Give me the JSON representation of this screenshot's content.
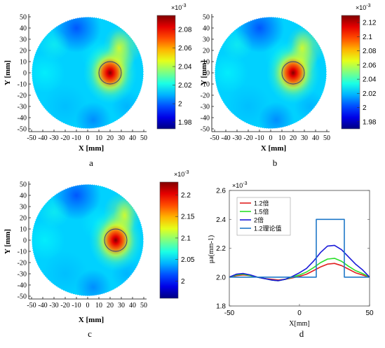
{
  "chart_data": [
    {
      "panel": "a",
      "type": "heatmap",
      "xlabel": "X [mm]",
      "ylabel": "Y [mm]",
      "x_ticks": [
        "-50",
        "-40",
        "-30",
        "-20",
        "-10",
        "0",
        "10",
        "20",
        "30",
        "40",
        "50"
      ],
      "y_ticks": [
        "50",
        "40",
        "30",
        "20",
        "10",
        "0",
        "-10",
        "-20",
        "-30",
        "-40",
        "-50"
      ],
      "xlim": [
        -55,
        55
      ],
      "ylim": [
        -55,
        55
      ],
      "domain": "circle of radius 50 mm",
      "inclusion": {
        "cx": 20,
        "cy": 0,
        "r": 10
      },
      "colorbar": {
        "exponent": "×10-3",
        "ticks": [
          "2.08",
          "2.06",
          "2.04",
          "2.02",
          "2",
          "1.98"
        ],
        "values": [
          2.08,
          2.06,
          2.04,
          2.02,
          2.0,
          1.98
        ],
        "range": [
          1.973,
          2.095
        ]
      }
    },
    {
      "panel": "b",
      "type": "heatmap",
      "xlabel": "X [mm]",
      "ylabel": "Y [mm]",
      "x_ticks": [
        "-50",
        "-40",
        "-30",
        "-20",
        "-10",
        "0",
        "10",
        "20",
        "30",
        "40",
        "50"
      ],
      "y_ticks": [
        "50",
        "40",
        "30",
        "20",
        "10",
        "0",
        "-10",
        "-20",
        "-30",
        "-40",
        "-50"
      ],
      "xlim": [
        -55,
        55
      ],
      "ylim": [
        -55,
        55
      ],
      "domain": "circle of radius 50 mm",
      "inclusion": {
        "cx": 20,
        "cy": 0,
        "r": 10
      },
      "colorbar": {
        "exponent": "×10-3",
        "ticks": [
          "2.12",
          "2.1",
          "2.08",
          "2.06",
          "2.04",
          "2.02",
          "2",
          "1.98"
        ],
        "values": [
          2.12,
          2.1,
          2.08,
          2.06,
          2.04,
          2.02,
          2.0,
          1.98
        ],
        "range": [
          1.97,
          2.13
        ]
      }
    },
    {
      "panel": "c",
      "type": "heatmap",
      "xlabel": "X [mm]",
      "ylabel": "Y [mm]",
      "x_ticks": [
        "-50",
        "-40",
        "-30",
        "-20",
        "-10",
        "0",
        "10",
        "20",
        "30",
        "40",
        "50"
      ],
      "y_ticks": [
        "50",
        "40",
        "30",
        "20",
        "10",
        "0",
        "-10",
        "-20",
        "-30",
        "-40",
        "-50"
      ],
      "xlim": [
        -55,
        55
      ],
      "ylim": [
        -55,
        55
      ],
      "domain": "circle of radius 50 mm",
      "inclusion": {
        "cx": 25,
        "cy": 0,
        "r": 10
      },
      "colorbar": {
        "exponent": "×10-3",
        "ticks": [
          "2.2",
          "2.15",
          "2.1",
          "2.05",
          "2"
        ],
        "values": [
          2.2,
          2.15,
          2.1,
          2.05,
          2.0
        ],
        "range": [
          1.96,
          2.23
        ]
      }
    },
    {
      "panel": "d",
      "type": "line",
      "ylabel": "μa(mm-1)",
      "xlabel": "X[mm]",
      "y_exponent": "×10-3",
      "xlim": [
        -50,
        50
      ],
      "ylim": [
        1.8,
        2.6
      ],
      "x_ticks": [
        -50,
        0,
        50
      ],
      "y_ticks": [
        1.8,
        2.0,
        2.2,
        2.4,
        2.6
      ],
      "legend_position": "top-left",
      "series": [
        {
          "name": "1.2倍",
          "color": "#e02020",
          "x": [
            -50,
            -45,
            -40,
            -35,
            -30,
            -25,
            -20,
            -15,
            -10,
            -5,
            0,
            5,
            10,
            15,
            20,
            25,
            30,
            35,
            40,
            45,
            50
          ],
          "y": [
            2.0,
            2.01,
            2.015,
            2.01,
            2.0,
            1.99,
            1.985,
            1.98,
            1.985,
            1.995,
            2.005,
            2.02,
            2.045,
            2.07,
            2.09,
            2.095,
            2.08,
            2.055,
            2.03,
            2.015,
            2.0
          ]
        },
        {
          "name": "1.5倍",
          "color": "#2adf2a",
          "x": [
            -50,
            -45,
            -40,
            -35,
            -30,
            -25,
            -20,
            -15,
            -10,
            -5,
            0,
            5,
            10,
            15,
            20,
            25,
            30,
            35,
            40,
            45,
            50
          ],
          "y": [
            2.0,
            2.015,
            2.02,
            2.01,
            2.0,
            1.99,
            1.98,
            1.975,
            1.985,
            2.0,
            2.015,
            2.035,
            2.065,
            2.1,
            2.125,
            2.13,
            2.11,
            2.075,
            2.045,
            2.025,
            2.0
          ]
        },
        {
          "name": "2倍",
          "color": "#1a1ad8",
          "x": [
            -50,
            -45,
            -40,
            -35,
            -30,
            -25,
            -20,
            -15,
            -10,
            -5,
            0,
            5,
            10,
            15,
            20,
            25,
            30,
            35,
            40,
            45,
            50
          ],
          "y": [
            2.0,
            2.02,
            2.025,
            2.015,
            2.0,
            1.99,
            1.98,
            1.975,
            1.985,
            2.005,
            2.03,
            2.06,
            2.11,
            2.17,
            2.215,
            2.22,
            2.19,
            2.14,
            2.09,
            2.05,
            2.0
          ]
        },
        {
          "name": "1.2理论值",
          "color": "#1f78c8",
          "x": [
            -50,
            12,
            12,
            32,
            32,
            50
          ],
          "y": [
            2.0,
            2.0,
            2.4,
            2.4,
            2.0,
            2.0
          ]
        }
      ]
    }
  ],
  "panel_labels": {
    "a": "a",
    "b": "b",
    "c": "c",
    "d": "d"
  }
}
